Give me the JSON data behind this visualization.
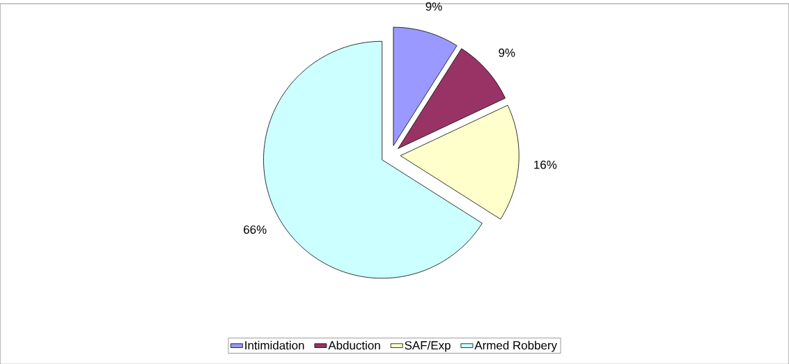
{
  "chart_data": {
    "type": "pie",
    "categories": [
      "Intimidation",
      "Abduction",
      "SAF/Exp",
      "Armed Robbery"
    ],
    "values": [
      9,
      9,
      16,
      66
    ],
    "value_labels": [
      "9%",
      "9%",
      "16%",
      "66%"
    ],
    "colors": [
      "#9999ff",
      "#993366",
      "#ffffcc",
      "#ccffff"
    ],
    "legend": "bottom"
  }
}
